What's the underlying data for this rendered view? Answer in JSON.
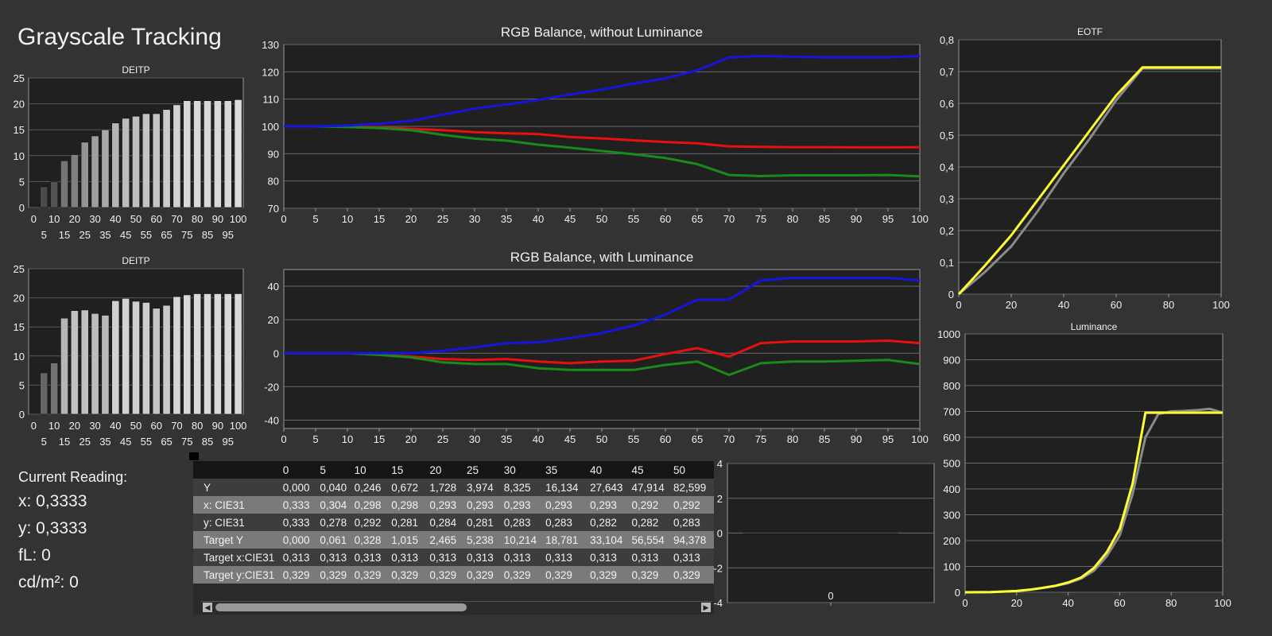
{
  "page": {
    "title": "Grayscale Tracking"
  },
  "readout": {
    "heading": "Current Reading:",
    "x": "x: 0,3333",
    "y": "y: 0,3333",
    "fl": "fL: 0",
    "cdm2": "cd/m²: 0"
  },
  "colors": {
    "background": "#333333",
    "panel": "#202020",
    "red": "#e81010",
    "green": "#1a8a1a",
    "blue": "#1515dd",
    "yellow": "#ffff33",
    "reference": "#8a8a8a"
  },
  "table": {
    "headers": [
      "",
      "0",
      "5",
      "10",
      "15",
      "20",
      "25",
      "30",
      "35",
      "40",
      "45",
      "50"
    ],
    "rows": [
      [
        "Y",
        "0,000",
        "0,040",
        "0,246",
        "0,672",
        "1,728",
        "3,974",
        "8,325",
        "16,134",
        "27,643",
        "47,914",
        "82,599"
      ],
      [
        "x: CIE31",
        "0,333",
        "0,304",
        "0,298",
        "0,298",
        "0,293",
        "0,293",
        "0,293",
        "0,293",
        "0,293",
        "0,292",
        "0,292"
      ],
      [
        "y: CIE31",
        "0,333",
        "0,278",
        "0,292",
        "0,281",
        "0,284",
        "0,281",
        "0,283",
        "0,283",
        "0,282",
        "0,282",
        "0,283"
      ],
      [
        "Target Y",
        "0,000",
        "0,061",
        "0,328",
        "1,015",
        "2,465",
        "5,238",
        "10,214",
        "18,781",
        "33,104",
        "56,554",
        "94,378"
      ],
      [
        "Target x:CIE31",
        "0,313",
        "0,313",
        "0,313",
        "0,313",
        "0,313",
        "0,313",
        "0,313",
        "0,313",
        "0,313",
        "0,313",
        "0,313"
      ],
      [
        "Target y:CIE31",
        "0,329",
        "0,329",
        "0,329",
        "0,329",
        "0,329",
        "0,329",
        "0,329",
        "0,329",
        "0,329",
        "0,329",
        "0,329"
      ]
    ],
    "scroll_left": "◀",
    "scroll_right": "▶"
  },
  "chart_data": [
    {
      "id": "deitp1",
      "type": "bar",
      "title": "DEITP",
      "x": [
        0,
        5,
        10,
        15,
        20,
        25,
        30,
        35,
        40,
        45,
        50,
        55,
        60,
        65,
        70,
        75,
        80,
        85,
        90,
        95,
        100
      ],
      "values": [
        0,
        4,
        5,
        9,
        10.2,
        12.6,
        13.8,
        15,
        16.3,
        17.2,
        17.6,
        18.1,
        18.1,
        18.9,
        19.8,
        20.6,
        20.6,
        20.6,
        20.6,
        20.6,
        20.8
      ],
      "ylim": [
        0,
        25
      ],
      "yticks": [
        "0",
        "5",
        "10",
        "15",
        "20",
        "25"
      ],
      "xticks_top": [
        "0",
        "10",
        "20",
        "30",
        "40",
        "50",
        "60",
        "70",
        "80",
        "90",
        "100"
      ],
      "xticks_bottom": [
        "5",
        "15",
        "25",
        "35",
        "45",
        "55",
        "65",
        "75",
        "85",
        "95"
      ]
    },
    {
      "id": "deitp2",
      "type": "bar",
      "title": "DEITP",
      "x": [
        0,
        5,
        10,
        15,
        20,
        25,
        30,
        35,
        40,
        45,
        50,
        55,
        60,
        65,
        70,
        75,
        80,
        85,
        90,
        95,
        100
      ],
      "values": [
        0,
        7.1,
        8.8,
        16.5,
        17.8,
        17.9,
        17.3,
        17,
        19.5,
        19.9,
        19.4,
        19.2,
        18.2,
        18.7,
        20.2,
        20.5,
        20.7,
        20.7,
        20.7,
        20.7,
        20.7
      ],
      "ylim": [
        0,
        25
      ],
      "yticks": [
        "0",
        "5",
        "10",
        "15",
        "20",
        "25"
      ],
      "xticks_top": [
        "0",
        "10",
        "20",
        "30",
        "40",
        "50",
        "60",
        "70",
        "80",
        "90",
        "100"
      ],
      "xticks_bottom": [
        "5",
        "15",
        "25",
        "35",
        "45",
        "55",
        "65",
        "75",
        "85",
        "95"
      ]
    },
    {
      "id": "rgb1",
      "type": "line",
      "title": "RGB Balance, without Luminance",
      "x": [
        0,
        5,
        10,
        15,
        20,
        25,
        30,
        35,
        40,
        45,
        50,
        55,
        60,
        65,
        70,
        75,
        80,
        85,
        90,
        95,
        100
      ],
      "series": [
        {
          "color": "red",
          "values": [
            100,
            100,
            100,
            99.6,
            99.1,
            98.6,
            97.9,
            97.5,
            97.2,
            96.1,
            95.6,
            94.9,
            94.3,
            93.8,
            92.7,
            92.5,
            92.4,
            92.4,
            92.3,
            92.3,
            92.4
          ]
        },
        {
          "color": "green",
          "values": [
            100,
            100,
            99.8,
            99.4,
            98.6,
            96.9,
            95.5,
            94.8,
            93.3,
            92.2,
            91,
            89.8,
            88.4,
            86.2,
            82.2,
            81.8,
            82.1,
            82.1,
            82.1,
            82.2,
            81.7
          ]
        },
        {
          "color": "blue",
          "values": [
            100,
            100,
            100.3,
            101,
            102,
            104.3,
            106.5,
            108,
            109.7,
            111.7,
            113.5,
            115.7,
            117.6,
            120.5,
            125.3,
            125.8,
            125.5,
            125.4,
            125.4,
            125.4,
            125.7
          ]
        }
      ],
      "ylim": [
        70,
        130
      ],
      "yticks": [
        "70",
        "80",
        "90",
        "100",
        "110",
        "120",
        "130"
      ],
      "xticks": [
        "0",
        "5",
        "10",
        "15",
        "20",
        "25",
        "30",
        "35",
        "40",
        "45",
        "50",
        "55",
        "60",
        "65",
        "70",
        "75",
        "80",
        "85",
        "90",
        "95",
        "100"
      ]
    },
    {
      "id": "rgb2",
      "type": "line",
      "title": "RGB Balance, with Luminance",
      "x": [
        0,
        5,
        10,
        15,
        20,
        25,
        30,
        35,
        40,
        45,
        50,
        55,
        60,
        65,
        70,
        75,
        80,
        85,
        90,
        95,
        100
      ],
      "series": [
        {
          "color": "red",
          "values": [
            0,
            0,
            0,
            -1,
            -2,
            -3.5,
            -4,
            -3.5,
            -5,
            -6,
            -5,
            -4.5,
            -0.5,
            3,
            -2,
            6,
            7,
            7,
            7,
            7.5,
            6
          ]
        },
        {
          "color": "green",
          "values": [
            0,
            0,
            0,
            -1,
            -2.5,
            -5.5,
            -6.5,
            -6.5,
            -9,
            -10,
            -10,
            -10,
            -7,
            -5,
            -13,
            -6,
            -5,
            -5,
            -4.5,
            -4,
            -6.5
          ]
        },
        {
          "color": "blue",
          "values": [
            0,
            0,
            0,
            0,
            0,
            1.5,
            3.5,
            6,
            6.5,
            9,
            12,
            16.5,
            23,
            32,
            32,
            43.5,
            45,
            45,
            45,
            45,
            43.5
          ]
        }
      ],
      "ylim": [
        -45,
        50
      ],
      "yticks": [
        "-40",
        "-20",
        "0",
        "20",
        "40"
      ],
      "ytick_values": [
        -40,
        -20,
        0,
        20,
        40
      ],
      "xticks": [
        "0",
        "5",
        "10",
        "15",
        "20",
        "25",
        "30",
        "35",
        "40",
        "45",
        "50",
        "55",
        "60",
        "65",
        "70",
        "75",
        "80",
        "85",
        "90",
        "95",
        "100"
      ]
    },
    {
      "id": "eotf",
      "type": "line",
      "title": "EOTF",
      "x": [
        0,
        10,
        20,
        30,
        40,
        50,
        60,
        70,
        75,
        100
      ],
      "series": [
        {
          "color": "reference",
          "values": [
            0,
            0.07,
            0.15,
            0.26,
            0.38,
            0.49,
            0.61,
            0.71,
            0.71,
            0.71
          ]
        },
        {
          "color": "yellow",
          "values": [
            0,
            0.09,
            0.185,
            0.295,
            0.405,
            0.515,
            0.625,
            0.713,
            0.713,
            0.713
          ]
        }
      ],
      "ylim": [
        0,
        0.8
      ],
      "yticks": [
        "0",
        "0,1",
        "0,2",
        "0,3",
        "0,4",
        "0,5",
        "0,6",
        "0,7",
        "0,8"
      ],
      "xticks": [
        "0",
        "20",
        "40",
        "60",
        "80",
        "100"
      ]
    },
    {
      "id": "luminance",
      "type": "line",
      "title": "Luminance",
      "x": [
        0,
        10,
        20,
        25,
        30,
        35,
        40,
        45,
        50,
        55,
        60,
        65,
        70,
        75,
        80,
        85,
        90,
        95,
        100
      ],
      "series": [
        {
          "color": "reference",
          "values": [
            0,
            1,
            5,
            10,
            17,
            25,
            35,
            53,
            83,
            140,
            220,
            380,
            600,
            690,
            700,
            702,
            705,
            710,
            695
          ]
        },
        {
          "color": "yellow",
          "values": [
            0,
            1,
            5,
            10,
            17,
            25,
            38,
            57,
            94,
            155,
            245,
            420,
            695,
            695,
            695,
            695,
            695,
            695,
            695
          ]
        }
      ],
      "ylim": [
        0,
        1000
      ],
      "yticks": [
        "0",
        "100",
        "200",
        "300",
        "400",
        "500",
        "600",
        "700",
        "800",
        "900",
        "1000"
      ],
      "xticks": [
        "0",
        "20",
        "40",
        "60",
        "80",
        "100"
      ]
    },
    {
      "id": "small",
      "type": "line",
      "title": "",
      "x": [
        0
      ],
      "series": [],
      "ylim": [
        -4,
        4
      ],
      "yticks": [
        "-4",
        "-2",
        "0",
        "2",
        "4"
      ],
      "xticks": [
        "0"
      ]
    }
  ]
}
